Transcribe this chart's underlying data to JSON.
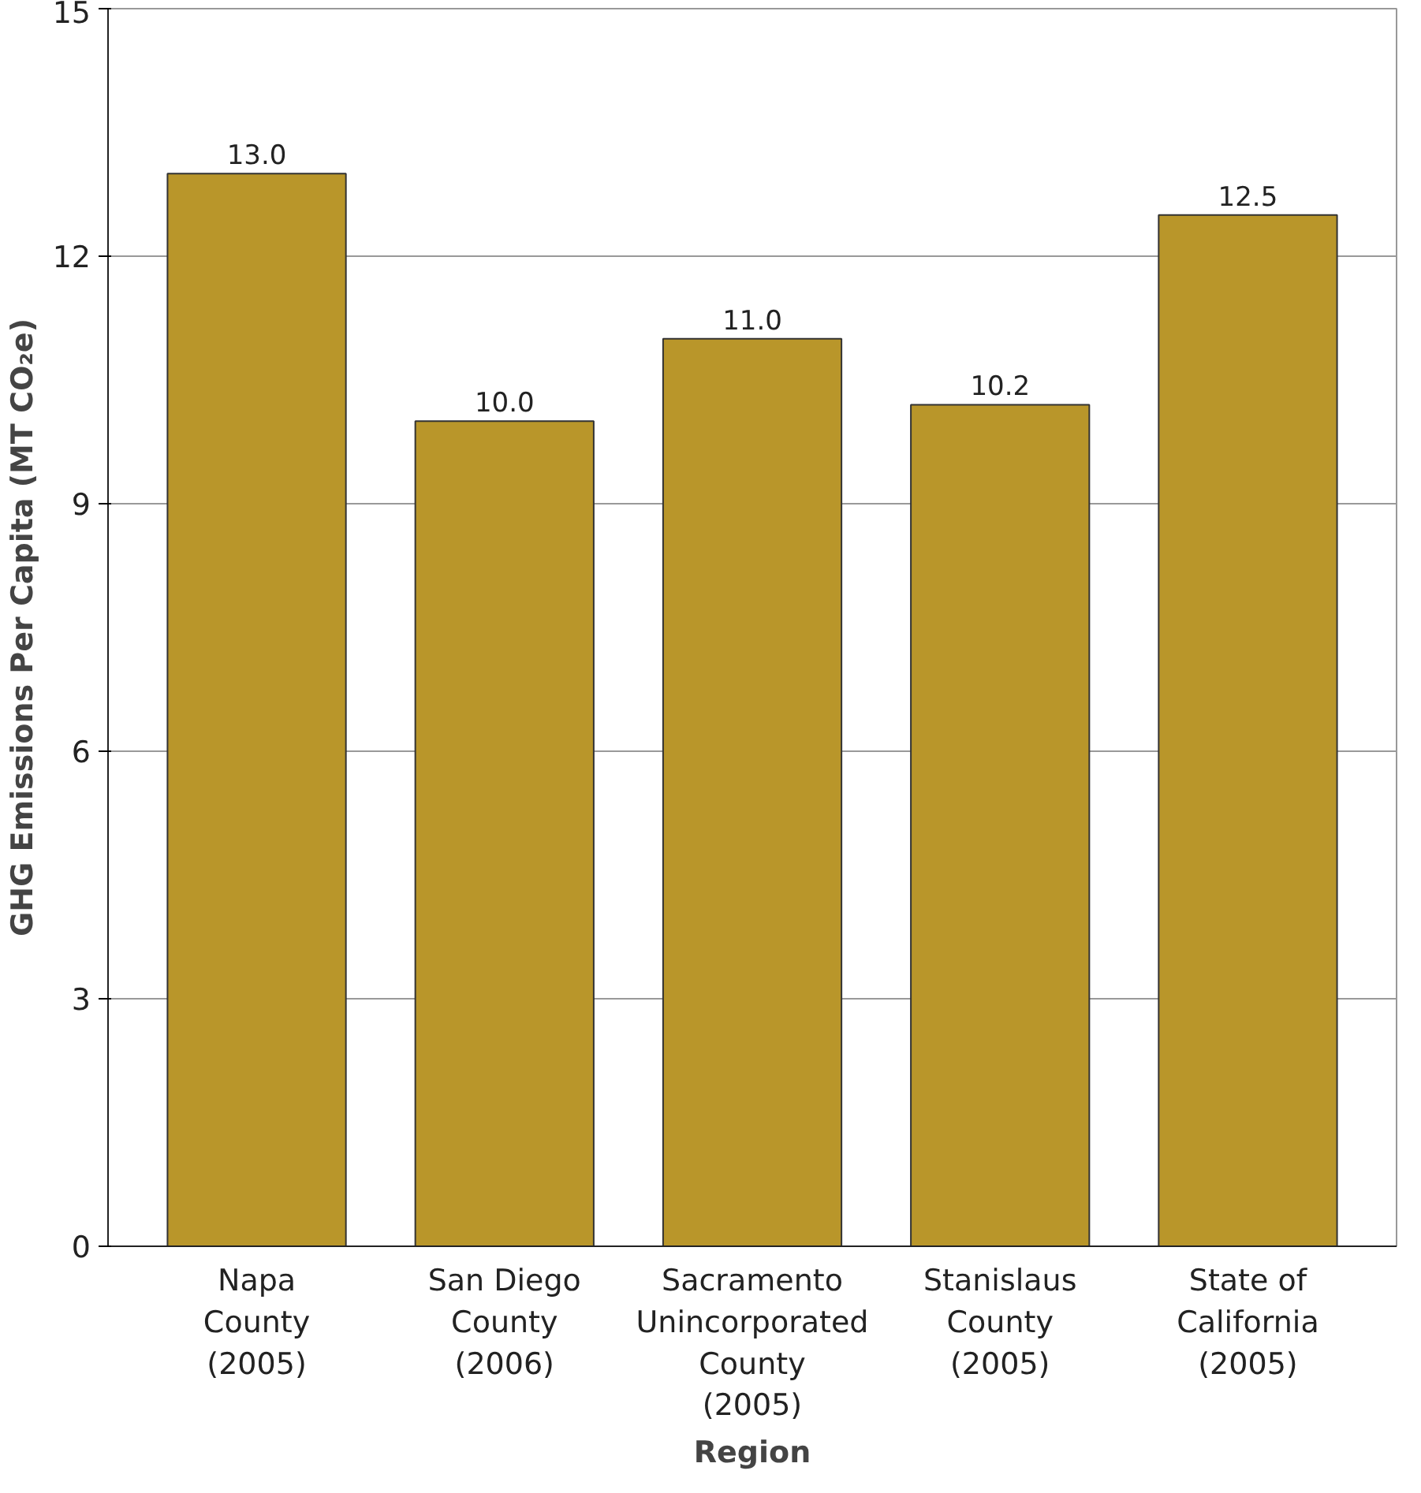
{
  "chart_data": {
    "type": "bar",
    "categories": [
      "Napa\nCounty\n(2005)",
      "San Diego\nCounty\n(2006)",
      "Sacramento\nUnincorporated\nCounty\n(2005)",
      "Stanislaus\nCounty\n(2005)",
      "State of\nCalifornia\n(2005)"
    ],
    "values": [
      13.0,
      10.0,
      11.0,
      10.2,
      12.5
    ],
    "color": "#b9962a",
    "xlabel": "Region",
    "ylabel": "GHG Emissions Per Capita (MT CO₂e)",
    "ylim": [
      0,
      15
    ],
    "yticks": [
      0,
      3,
      6,
      9,
      12,
      15
    ],
    "value_labels": [
      "13.0",
      "10.0",
      "11.0",
      "10.2",
      "12.5"
    ],
    "grid": "y"
  }
}
